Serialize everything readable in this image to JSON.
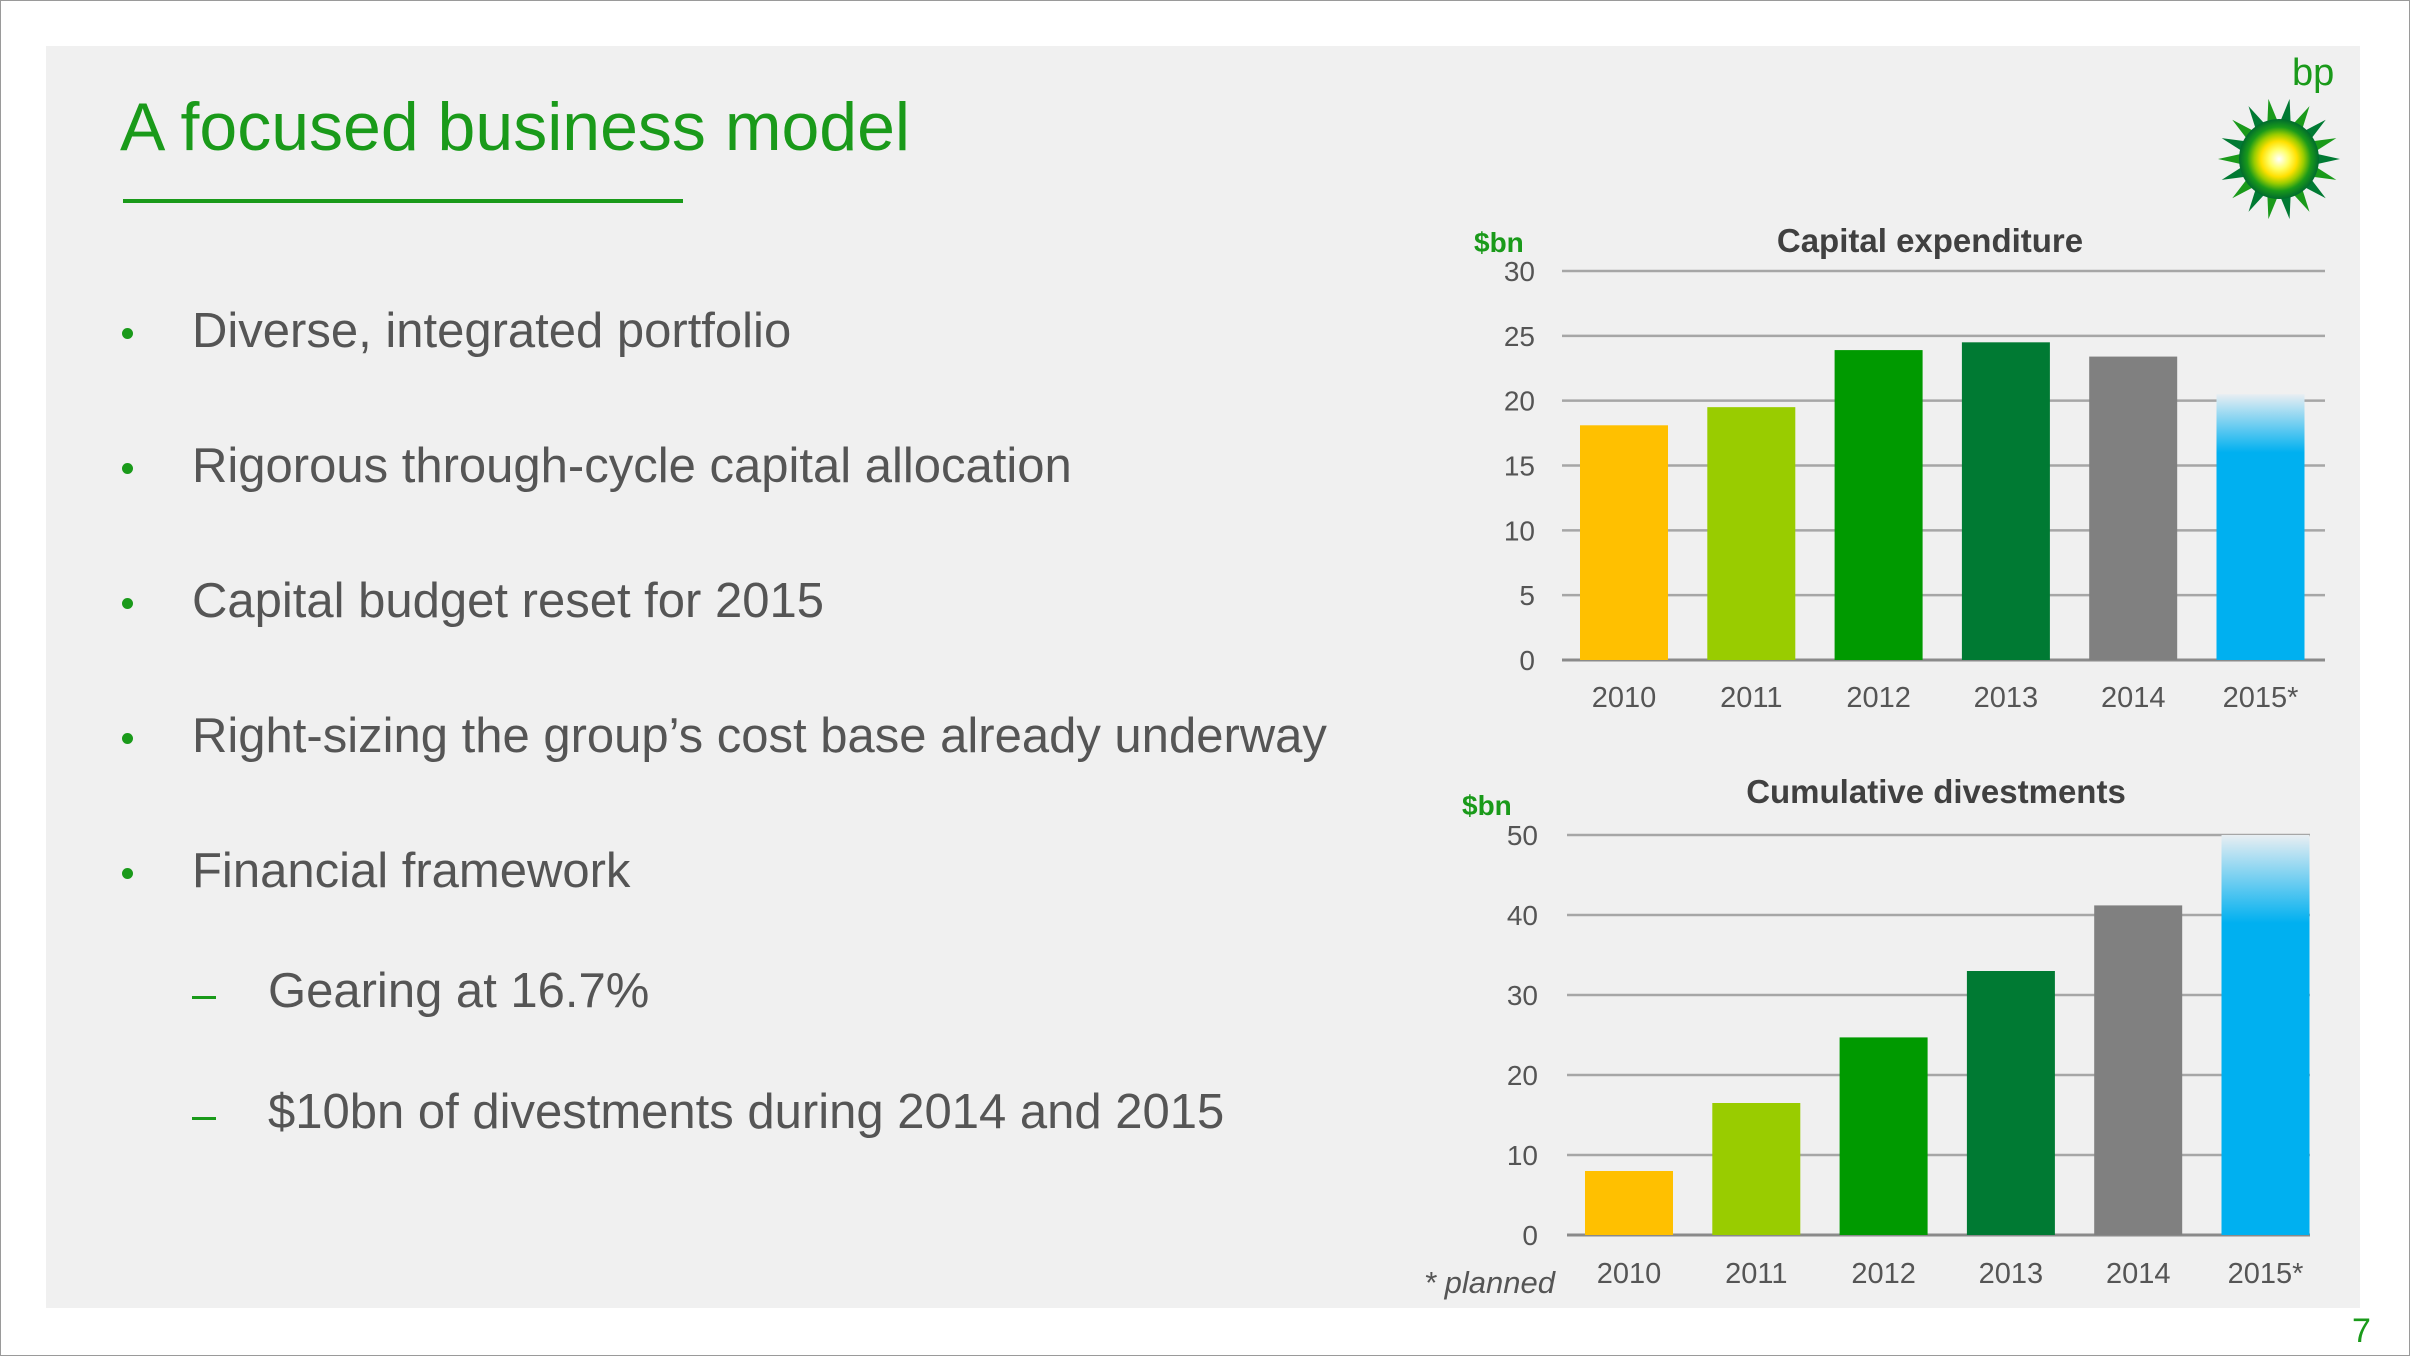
{
  "slide": {
    "title": "A focused business model",
    "page_number": "7",
    "logo_text": "bp",
    "footnote": "* planned"
  },
  "bullets": [
    {
      "text": "Diverse, integrated portfolio",
      "level": 1
    },
    {
      "text": "Rigorous through-cycle capital allocation",
      "level": 1
    },
    {
      "text": "Capital budget reset for 2015",
      "level": 1
    },
    {
      "text": "Right-sizing the group’s cost base already underway",
      "level": 1
    },
    {
      "text": "Financial framework",
      "level": 1
    },
    {
      "text": "Gearing at 16.7%",
      "level": 2
    },
    {
      "text": "$10bn of divestments during 2014 and 2015",
      "level": 2
    }
  ],
  "colors": {
    "brand_green": "#1a9a1a",
    "bar_2010": "#ffc000",
    "bar_2011": "#99cc00",
    "bar_2012": "#009a00",
    "bar_2013": "#007a33",
    "bar_2014": "#808080",
    "bar_2015": "#00b0f0"
  },
  "chart_data": [
    {
      "type": "bar",
      "title": "Capital expenditure",
      "ylabel": "$bn",
      "categories": [
        "2010",
        "2011",
        "2012",
        "2013",
        "2014",
        "2015*"
      ],
      "values": [
        18.1,
        19.5,
        23.9,
        24.5,
        23.4,
        20.5
      ],
      "ylim": [
        0,
        30
      ],
      "yticks": [
        "0",
        "5",
        "10",
        "15",
        "20",
        "25",
        "30"
      ],
      "grid": true,
      "last_bar_faded_top": true
    },
    {
      "type": "bar",
      "title": "Cumulative divestments",
      "ylabel": "$bn",
      "categories": [
        "2010",
        "2011",
        "2012",
        "2013",
        "2014",
        "2015*"
      ],
      "values": [
        8,
        16.5,
        24.7,
        33,
        41.2,
        50
      ],
      "ylim": [
        0,
        50
      ],
      "yticks": [
        "0",
        "10",
        "20",
        "30",
        "40",
        "50"
      ],
      "grid": true,
      "last_bar_faded_top": true
    }
  ]
}
